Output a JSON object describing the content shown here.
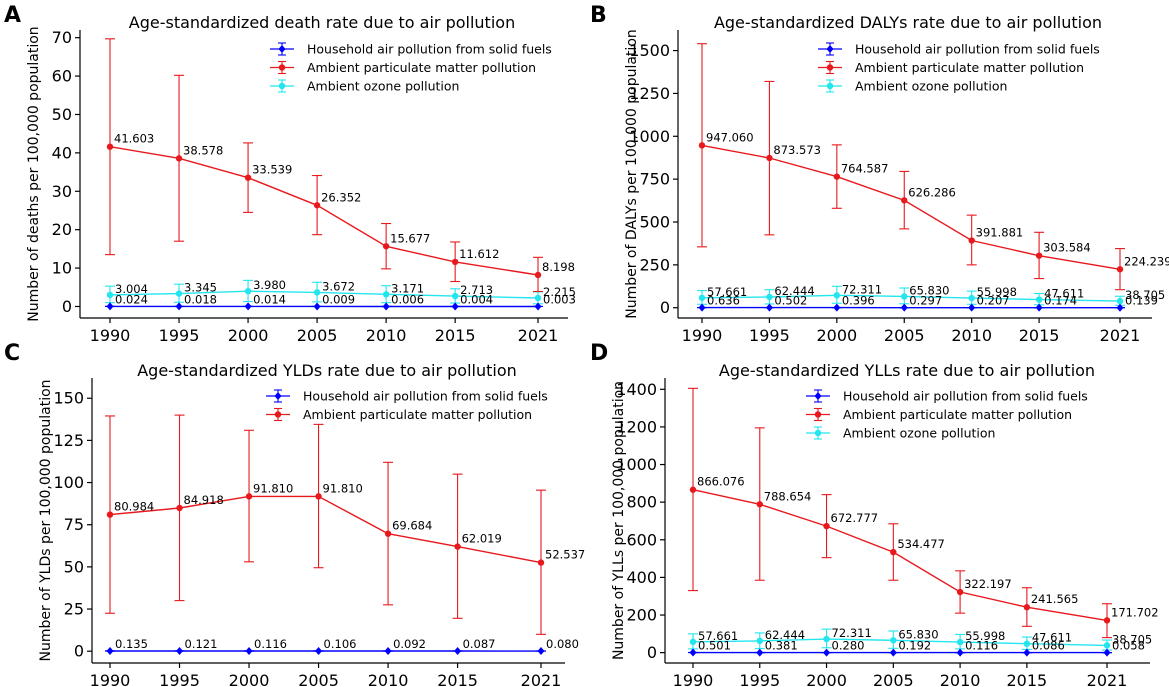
{
  "chart_data": [
    {
      "panel": "A",
      "type": "line",
      "title": "Age-standardized death rate due to air pollution",
      "ylabel": "Number of deaths per 100,000 population",
      "xlabel": "",
      "ylim": [
        -3,
        72
      ],
      "yticks": [
        0,
        10,
        20,
        30,
        40,
        50,
        60,
        70
      ],
      "categories": [
        "1990",
        "1995",
        "2000",
        "2005",
        "2010",
        "2015",
        "2021"
      ],
      "series": [
        {
          "name": "Household air pollution from solid fuels",
          "color": "#0000ff",
          "values": [
            0.024,
            0.018,
            0.014,
            0.009,
            0.006,
            0.004,
            0.003
          ],
          "labels": [
            "0.024",
            "0.018",
            "0.014",
            "0.009",
            "0.006",
            "0.004",
            "0.003"
          ],
          "lower": [
            0.0,
            0.0,
            0.0,
            0.0,
            0.0,
            0.0,
            0.0
          ],
          "upper": [
            0.05,
            0.04,
            0.03,
            0.02,
            0.01,
            0.01,
            0.01
          ]
        },
        {
          "name": "Ambient particulate matter pollution",
          "color": "#e8191d",
          "values": [
            41.603,
            38.578,
            33.539,
            26.352,
            15.677,
            11.612,
            8.198
          ],
          "labels": [
            "41.603",
            "38.578",
            "33.539",
            "26.352",
            "15.677",
            "11.612",
            "8.198"
          ],
          "lower": [
            13.5,
            17.0,
            24.5,
            18.7,
            9.8,
            6.5,
            3.9
          ],
          "upper": [
            69.7,
            60.2,
            42.6,
            34.1,
            21.6,
            16.8,
            12.8
          ]
        },
        {
          "name": "Ambient ozone pollution",
          "color": "#22e5ee",
          "values": [
            3.004,
            3.345,
            3.98,
            3.672,
            3.171,
            2.713,
            2.215
          ],
          "labels": [
            "3.004",
            "3.345",
            "3.980",
            "3.672",
            "3.171",
            "2.713",
            "2.215"
          ],
          "lower": [
            1.0,
            1.1,
            1.3,
            1.2,
            1.0,
            0.9,
            0.7
          ],
          "upper": [
            5.3,
            5.8,
            6.8,
            6.3,
            5.4,
            4.6,
            3.8
          ]
        }
      ]
    },
    {
      "panel": "B",
      "type": "line",
      "title": "Age-standardized DALYs rate due to air pollution",
      "ylabel": "Number of DALYs per 100,000 population",
      "xlabel": "",
      "ylim": [
        -60,
        1620
      ],
      "yticks": [
        0,
        250,
        500,
        750,
        1000,
        1250,
        1500
      ],
      "categories": [
        "1990",
        "1995",
        "2000",
        "2005",
        "2010",
        "2015",
        "2021"
      ],
      "series": [
        {
          "name": "Household air pollution from solid fuels",
          "color": "#0000ff",
          "values": [
            0.636,
            0.502,
            0.396,
            0.297,
            0.207,
            0.174,
            0.139
          ],
          "labels": [
            "0.636",
            "0.502",
            "0.396",
            "0.297",
            "0.207",
            "0.174",
            "0.139"
          ],
          "lower": [
            0.3,
            0.2,
            0.2,
            0.1,
            0.1,
            0.1,
            0.0
          ],
          "upper": [
            1.2,
            1.0,
            0.8,
            0.6,
            0.4,
            0.3,
            0.3
          ]
        },
        {
          "name": "Ambient particulate matter pollution",
          "color": "#e8191d",
          "values": [
            947.06,
            873.573,
            764.587,
            626.286,
            391.881,
            303.584,
            224.239
          ],
          "labels": [
            "947.060",
            "873.573",
            "764.587",
            "626.286",
            "391.881",
            "303.584",
            "224.239"
          ],
          "lower": [
            355,
            425,
            580,
            460,
            250,
            170,
            105
          ],
          "upper": [
            1540,
            1320,
            950,
            795,
            540,
            440,
            345
          ]
        },
        {
          "name": "Ambient ozone pollution",
          "color": "#22e5ee",
          "values": [
            57.661,
            62.444,
            72.311,
            65.83,
            55.998,
            47.611,
            38.705
          ],
          "labels": [
            "57.661",
            "62.444",
            "72.311",
            "65.830",
            "55.998",
            "47.611",
            "38.705"
          ],
          "lower": [
            20,
            22,
            26,
            23,
            20,
            17,
            14
          ],
          "upper": [
            100,
            105,
            125,
            115,
            97,
            83,
            67
          ]
        }
      ]
    },
    {
      "panel": "C",
      "type": "line",
      "title": "Age-standardized YLDs rate due to air pollution",
      "ylabel": "Number of YLDs per 100,000 population",
      "xlabel": "",
      "ylim": [
        -7,
        162
      ],
      "yticks": [
        0,
        25,
        50,
        75,
        100,
        125,
        150
      ],
      "categories": [
        "1990",
        "1995",
        "2000",
        "2005",
        "2010",
        "2015",
        "2021"
      ],
      "series": [
        {
          "name": "Household air pollution from solid fuels",
          "color": "#0000ff",
          "values": [
            0.135,
            0.121,
            0.116,
            0.106,
            0.092,
            0.087,
            0.08
          ],
          "labels": [
            "0.135",
            "0.121",
            "0.116",
            "0.106",
            "0.092",
            "0.087",
            "0.080"
          ],
          "lower": [
            0.05,
            0.05,
            0.04,
            0.04,
            0.03,
            0.03,
            0.03
          ],
          "upper": [
            0.25,
            0.22,
            0.21,
            0.19,
            0.17,
            0.16,
            0.15
          ]
        },
        {
          "name": "Ambient particulate matter pollution",
          "color": "#e8191d",
          "values": [
            80.984,
            84.918,
            91.81,
            91.81,
            69.684,
            62.019,
            52.537
          ],
          "labels": [
            "80.984",
            "84.918",
            "91.810",
            "91.810",
            "69.684",
            "62.019",
            "52.537"
          ],
          "lower": [
            22.5,
            30.0,
            53.0,
            49.5,
            27.5,
            19.5,
            10.0
          ],
          "upper": [
            139.5,
            140.0,
            131.0,
            134.5,
            112.0,
            105.0,
            95.5
          ]
        }
      ]
    },
    {
      "panel": "D",
      "type": "line",
      "title": "Age-standardized YLLs rate due to air pollution",
      "ylabel": "Number of YLLs per 100,000 population",
      "xlabel": "",
      "ylim": [
        -55,
        1460
      ],
      "yticks": [
        0,
        200,
        400,
        600,
        800,
        1000,
        1200,
        1400
      ],
      "categories": [
        "1990",
        "1995",
        "2000",
        "2005",
        "2010",
        "2015",
        "2021"
      ],
      "series": [
        {
          "name": "Household air pollution from solid fuels",
          "color": "#0000ff",
          "values": [
            0.501,
            0.381,
            0.28,
            0.192,
            0.116,
            0.086,
            0.058
          ],
          "labels": [
            "0.501",
            "0.381",
            "0.280",
            "0.192",
            "0.116",
            "0.086",
            "0.058"
          ],
          "lower": [
            0.2,
            0.2,
            0.1,
            0.1,
            0.0,
            0.0,
            0.0
          ],
          "upper": [
            1.0,
            0.8,
            0.6,
            0.4,
            0.3,
            0.2,
            0.1
          ]
        },
        {
          "name": "Ambient particulate matter pollution",
          "color": "#e8191d",
          "values": [
            866.076,
            788.654,
            672.777,
            534.477,
            322.197,
            241.565,
            171.702
          ],
          "labels": [
            "866.076",
            "788.654",
            "672.777",
            "534.477",
            "322.197",
            "241.565",
            "171.702"
          ],
          "lower": [
            330,
            385,
            505,
            385,
            210,
            140,
            80
          ],
          "upper": [
            1405,
            1195,
            840,
            685,
            435,
            345,
            260
          ]
        },
        {
          "name": "Ambient ozone pollution",
          "color": "#22e5ee",
          "values": [
            57.661,
            62.444,
            72.311,
            65.83,
            55.998,
            47.611,
            38.705
          ],
          "labels": [
            "57.661",
            "62.444",
            "72.311",
            "65.830",
            "55.998",
            "47.611",
            "38.705"
          ],
          "lower": [
            20,
            22,
            26,
            23,
            20,
            17,
            14
          ],
          "upper": [
            100,
            105,
            125,
            115,
            97,
            83,
            67
          ]
        }
      ]
    }
  ]
}
